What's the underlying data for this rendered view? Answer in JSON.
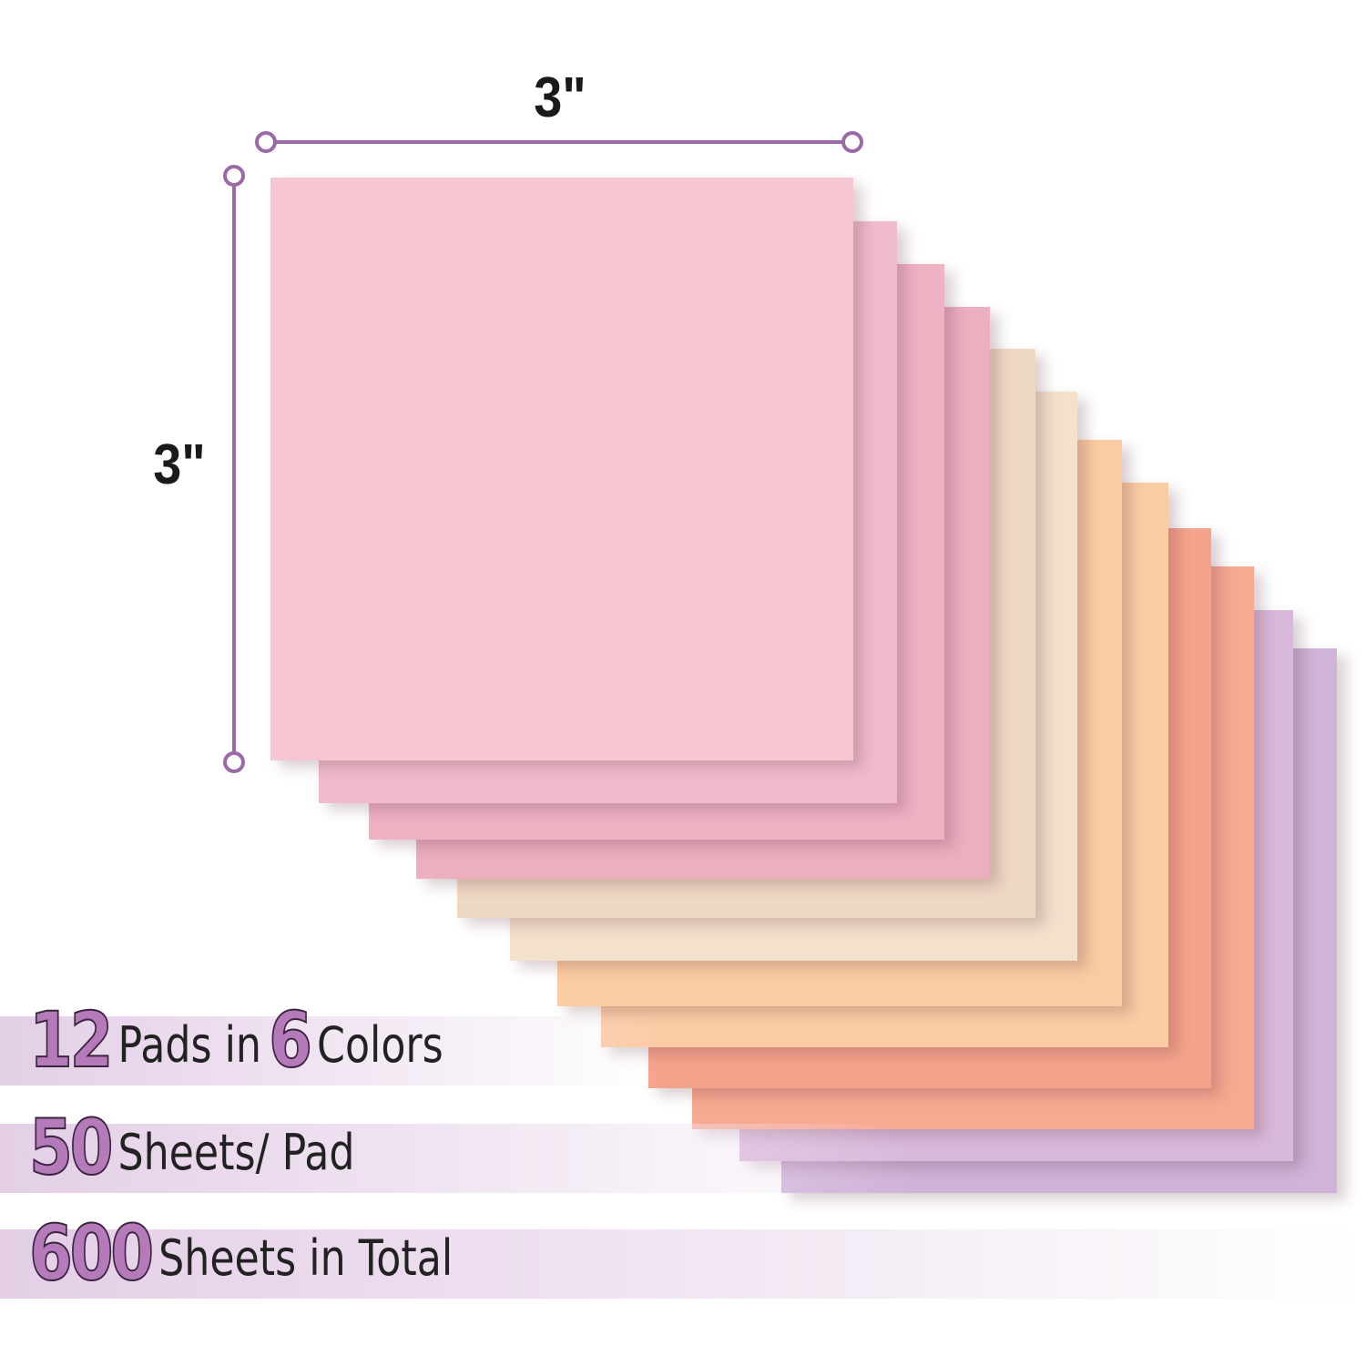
{
  "dimensions": {
    "width_label": "3\"",
    "height_label": "3\"",
    "line_color": "#9b6aa6"
  },
  "pads": {
    "colors": [
      "#f6c7d3",
      "#f0bccc",
      "#eeb2c3",
      "#ecafbf",
      "#efd9c4",
      "#f4e1cb",
      "#fbcca2",
      "#fccca5",
      "#f5a48c",
      "#f8a991",
      "#d9b9da",
      "#cfb3d9"
    ]
  },
  "stats": [
    {
      "number": "12",
      "text": "Pads in",
      "number2": "6",
      "text2": "Colors"
    },
    {
      "number": "50",
      "text": "Sheets/ Pad"
    },
    {
      "number": "600",
      "text": "Sheets in Total"
    }
  ],
  "accent_color": "#b57ab9"
}
